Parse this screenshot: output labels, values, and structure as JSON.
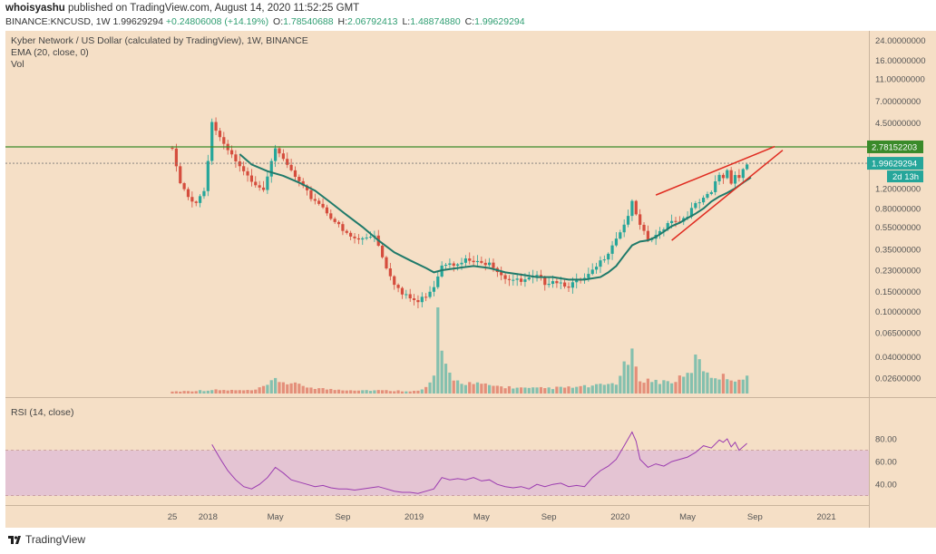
{
  "header": {
    "author": "whoisyashu",
    "published": "published on TradingView.com, August 14, 2020 11:52:25 GMT",
    "symbol_line_prefix": "BINANCE:KNCUSD, 1W",
    "last_price": "1.99629294",
    "change": "+0.24806008 (+14.19%)",
    "open_label": "O:",
    "open": "1.78540688",
    "high_label": "H:",
    "high": "2.06792413",
    "low_label": "L:",
    "low": "1.48874880",
    "close_label": "C:",
    "close": "1.99629294"
  },
  "legend": {
    "title": "Kyber Network / US Dollar (calculated by TradingView), 1W, BINANCE",
    "ema": "EMA (20, close, 0)",
    "vol": "Vol",
    "rsi": "RSI (14, close)"
  },
  "price_badges": {
    "resistance": "2.78152203",
    "last": "1.99629294",
    "countdown": "2d 13h"
  },
  "footer": {
    "brand": "TradingView"
  },
  "colors": {
    "background": "#f5dfc6",
    "rsi_band": "#e4c4d3",
    "up": "#26a69a",
    "down": "#d54d3d",
    "ema": "#1f7a6a",
    "rsi_line": "#9b3bb0",
    "resistance": "#3a8a2a",
    "wedge": "#e02b20"
  },
  "chart_data": {
    "type": "candlestick",
    "title": "Kyber Network / US Dollar (calculated by TradingView), 1W, BINANCE",
    "y_scale": "log",
    "y_ticks": [
      "24.00000000",
      "16.00000000",
      "11.00000000",
      "7.00000000",
      "4.50000000",
      "2.78152203",
      "1.99629294",
      "1.20000000",
      "0.80000000",
      "0.55000000",
      "0.35000000",
      "0.23000000",
      "0.15000000",
      "0.10000000",
      "0.06500000",
      "0.04000000",
      "0.02600000"
    ],
    "y_tick_values": [
      24,
      16,
      11,
      7,
      4.5,
      2.78152203,
      1.99629294,
      1.2,
      0.8,
      0.55,
      0.35,
      0.23,
      0.15,
      0.1,
      0.065,
      0.04,
      0.026
    ],
    "ylim": [
      0.019,
      28
    ],
    "x_ticks": [
      "25",
      "2018",
      "May",
      "Sep",
      "2019",
      "May",
      "Sep",
      "2020",
      "May",
      "Sep",
      "2021"
    ],
    "x_tick_weeks": [
      0,
      9,
      26,
      43,
      61,
      78,
      95,
      113,
      130,
      147,
      165
    ],
    "n_weeks": 151,
    "resistance_level": 2.78152203,
    "candle_anchors": [
      [
        0,
        2.6
      ],
      [
        2,
        1.3
      ],
      [
        4,
        1.0
      ],
      [
        6,
        0.92
      ],
      [
        8,
        1.15
      ],
      [
        9,
        2.2
      ],
      [
        10,
        4.6
      ],
      [
        11,
        3.9
      ],
      [
        12,
        3.3
      ],
      [
        13,
        2.8
      ],
      [
        15,
        2.3
      ],
      [
        17,
        1.8
      ],
      [
        19,
        1.5
      ],
      [
        21,
        1.35
      ],
      [
        23,
        1.2
      ],
      [
        25,
        2.2
      ],
      [
        26,
        2.8
      ],
      [
        27,
        2.3
      ],
      [
        29,
        1.9
      ],
      [
        31,
        1.5
      ],
      [
        33,
        1.2
      ],
      [
        35,
        1.0
      ],
      [
        37,
        0.9
      ],
      [
        39,
        0.75
      ],
      [
        41,
        0.62
      ],
      [
        43,
        0.5
      ],
      [
        45,
        0.45
      ],
      [
        47,
        0.42
      ],
      [
        49,
        0.45
      ],
      [
        51,
        0.48
      ],
      [
        52,
        0.38
      ],
      [
        54,
        0.25
      ],
      [
        56,
        0.18
      ],
      [
        58,
        0.14
      ],
      [
        60,
        0.13
      ],
      [
        62,
        0.12
      ],
      [
        64,
        0.14
      ],
      [
        66,
        0.17
      ],
      [
        68,
        0.26
      ],
      [
        70,
        0.28
      ],
      [
        72,
        0.25
      ],
      [
        74,
        0.28
      ],
      [
        76,
        0.27
      ],
      [
        78,
        0.26
      ],
      [
        80,
        0.28
      ],
      [
        82,
        0.23
      ],
      [
        84,
        0.2
      ],
      [
        86,
        0.19
      ],
      [
        88,
        0.18
      ],
      [
        90,
        0.19
      ],
      [
        92,
        0.2
      ],
      [
        94,
        0.18
      ],
      [
        96,
        0.19
      ],
      [
        98,
        0.18
      ],
      [
        100,
        0.17
      ],
      [
        102,
        0.18
      ],
      [
        104,
        0.19
      ],
      [
        106,
        0.22
      ],
      [
        108,
        0.27
      ],
      [
        110,
        0.34
      ],
      [
        112,
        0.45
      ],
      [
        114,
        0.58
      ],
      [
        116,
        0.88
      ],
      [
        117,
        0.7
      ],
      [
        118,
        0.55
      ],
      [
        120,
        0.42
      ],
      [
        122,
        0.45
      ],
      [
        124,
        0.55
      ],
      [
        126,
        0.65
      ],
      [
        128,
        0.62
      ],
      [
        130,
        0.72
      ],
      [
        132,
        0.85
      ],
      [
        134,
        0.95
      ],
      [
        136,
        1.1
      ],
      [
        137,
        1.35
      ],
      [
        138,
        1.6
      ],
      [
        139,
        1.5
      ],
      [
        140,
        1.75
      ],
      [
        141,
        1.4
      ],
      [
        142,
        1.6
      ],
      [
        143,
        1.5
      ],
      [
        144,
        1.78
      ],
      [
        145,
        1.99629294
      ]
    ],
    "ema_points": [
      [
        17,
        2.4
      ],
      [
        20,
        1.95
      ],
      [
        24,
        1.7
      ],
      [
        28,
        1.55
      ],
      [
        32,
        1.35
      ],
      [
        36,
        1.15
      ],
      [
        40,
        0.9
      ],
      [
        44,
        0.7
      ],
      [
        48,
        0.55
      ],
      [
        52,
        0.42
      ],
      [
        56,
        0.33
      ],
      [
        60,
        0.28
      ],
      [
        64,
        0.24
      ],
      [
        66,
        0.22
      ],
      [
        68,
        0.23
      ],
      [
        72,
        0.24
      ],
      [
        76,
        0.25
      ],
      [
        80,
        0.24
      ],
      [
        84,
        0.22
      ],
      [
        88,
        0.21
      ],
      [
        92,
        0.2
      ],
      [
        96,
        0.2
      ],
      [
        100,
        0.19
      ],
      [
        104,
        0.19
      ],
      [
        108,
        0.2
      ],
      [
        110,
        0.22
      ],
      [
        112,
        0.25
      ],
      [
        114,
        0.31
      ],
      [
        116,
        0.38
      ],
      [
        118,
        0.41
      ],
      [
        120,
        0.42
      ],
      [
        122,
        0.45
      ],
      [
        124,
        0.5
      ],
      [
        126,
        0.56
      ],
      [
        128,
        0.6
      ],
      [
        130,
        0.66
      ],
      [
        132,
        0.72
      ],
      [
        134,
        0.8
      ],
      [
        136,
        0.92
      ],
      [
        138,
        1.02
      ],
      [
        140,
        1.1
      ],
      [
        142,
        1.2
      ],
      [
        144,
        1.35
      ],
      [
        146,
        1.5
      ]
    ],
    "volume_anchors": [
      [
        0,
        0.2
      ],
      [
        10,
        0.35
      ],
      [
        20,
        0.3
      ],
      [
        26,
        1.4
      ],
      [
        40,
        0.4
      ],
      [
        62,
        0.25
      ],
      [
        64,
        0.6
      ],
      [
        66,
        1.8
      ],
      [
        67,
        9.0
      ],
      [
        68,
        3.5
      ],
      [
        69,
        2.6
      ],
      [
        70,
        2.0
      ],
      [
        72,
        1.2
      ],
      [
        80,
        0.8
      ],
      [
        90,
        0.5
      ],
      [
        100,
        0.6
      ],
      [
        108,
        0.8
      ],
      [
        112,
        1.1
      ],
      [
        114,
        2.6
      ],
      [
        116,
        4.0
      ],
      [
        117,
        2.2
      ],
      [
        118,
        1.5
      ],
      [
        122,
        1.2
      ],
      [
        126,
        1.2
      ],
      [
        130,
        1.8
      ],
      [
        132,
        3.4
      ],
      [
        134,
        2.6
      ],
      [
        136,
        1.8
      ],
      [
        140,
        1.6
      ],
      [
        144,
        1.4
      ],
      [
        145,
        1.5
      ]
    ],
    "rsi": {
      "title": "RSI (14, close)",
      "y_ticks": [
        "80.00",
        "60.00",
        "40.00"
      ],
      "y_tick_values": [
        80,
        60,
        40
      ],
      "band": [
        30,
        70
      ],
      "ylim": [
        25,
        88
      ],
      "points": [
        [
          10,
          75
        ],
        [
          12,
          63
        ],
        [
          14,
          52
        ],
        [
          16,
          44
        ],
        [
          18,
          38
        ],
        [
          20,
          36
        ],
        [
          22,
          40
        ],
        [
          24,
          46
        ],
        [
          26,
          55
        ],
        [
          28,
          50
        ],
        [
          30,
          44
        ],
        [
          32,
          42
        ],
        [
          34,
          40
        ],
        [
          36,
          38
        ],
        [
          38,
          39
        ],
        [
          40,
          37
        ],
        [
          42,
          36
        ],
        [
          44,
          36
        ],
        [
          46,
          35
        ],
        [
          48,
          36
        ],
        [
          50,
          37
        ],
        [
          52,
          38
        ],
        [
          54,
          36
        ],
        [
          56,
          34
        ],
        [
          58,
          33
        ],
        [
          60,
          33
        ],
        [
          62,
          32
        ],
        [
          64,
          34
        ],
        [
          66,
          36
        ],
        [
          68,
          46
        ],
        [
          70,
          44
        ],
        [
          72,
          45
        ],
        [
          74,
          44
        ],
        [
          76,
          46
        ],
        [
          78,
          43
        ],
        [
          80,
          44
        ],
        [
          82,
          40
        ],
        [
          84,
          38
        ],
        [
          86,
          37
        ],
        [
          88,
          38
        ],
        [
          90,
          36
        ],
        [
          92,
          40
        ],
        [
          94,
          38
        ],
        [
          96,
          40
        ],
        [
          98,
          41
        ],
        [
          100,
          38
        ],
        [
          102,
          39
        ],
        [
          104,
          38
        ],
        [
          106,
          46
        ],
        [
          108,
          52
        ],
        [
          110,
          56
        ],
        [
          112,
          62
        ],
        [
          114,
          74
        ],
        [
          116,
          86
        ],
        [
          117,
          78
        ],
        [
          118,
          62
        ],
        [
          120,
          55
        ],
        [
          122,
          58
        ],
        [
          124,
          56
        ],
        [
          126,
          60
        ],
        [
          128,
          62
        ],
        [
          130,
          64
        ],
        [
          132,
          68
        ],
        [
          134,
          74
        ],
        [
          136,
          72
        ],
        [
          138,
          79
        ],
        [
          139,
          77
        ],
        [
          140,
          80
        ],
        [
          141,
          73
        ],
        [
          142,
          77
        ],
        [
          143,
          70
        ],
        [
          144,
          73
        ],
        [
          145,
          76
        ]
      ]
    }
  }
}
